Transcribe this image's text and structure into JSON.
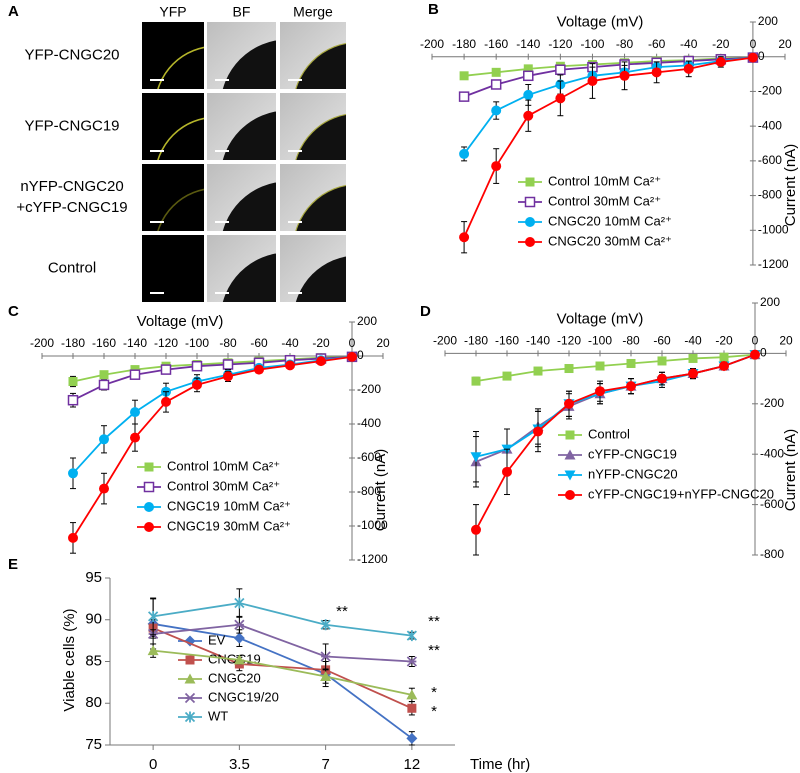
{
  "panel_a": {
    "label": "A",
    "columns": [
      "YFP",
      "BF",
      "Merge"
    ],
    "rows": [
      [
        "YFP-CNGC20"
      ],
      [
        "YFP-CNGC19"
      ],
      [
        "nYFP-CNGC20",
        "+cYFP-CNGC19"
      ],
      [
        "Control"
      ]
    ]
  },
  "chart_data": [
    {
      "type": "line",
      "label": "B",
      "x_label": "Voltage (mV)",
      "y_label": "Current (nA)",
      "x": [
        -180,
        -160,
        -140,
        -120,
        -100,
        -80,
        -60,
        -40,
        -20,
        0
      ],
      "xlim": [
        -200,
        20
      ],
      "xticks": [
        -200,
        -180,
        -160,
        -140,
        -120,
        -100,
        -80,
        -60,
        -40,
        -20,
        0,
        20
      ],
      "ylim": [
        -1200,
        200
      ],
      "yticks": [
        200,
        0,
        -200,
        -400,
        -600,
        -800,
        -1000,
        -1200
      ],
      "series": [
        {
          "name": "Control 10mM Ca²⁺",
          "color": "#92d050",
          "marker": "square",
          "values": [
            -110,
            -90,
            -70,
            -55,
            -45,
            -35,
            -25,
            -20,
            -10,
            -5
          ],
          "errors": [
            15,
            10,
            8,
            6,
            5,
            5,
            4,
            3,
            3,
            2
          ]
        },
        {
          "name": "Control 30mM Ca²⁺",
          "color": "#7030a0",
          "marker": "open-square",
          "values": [
            -230,
            -160,
            -110,
            -75,
            -60,
            -45,
            -35,
            -25,
            -15,
            -5
          ],
          "errors": [
            20,
            15,
            12,
            10,
            8,
            6,
            5,
            4,
            3,
            2
          ]
        },
        {
          "name": "CNGC20 10mM Ca²⁺",
          "color": "#00b0f0",
          "marker": "circle",
          "values": [
            -560,
            -310,
            -220,
            -160,
            -110,
            -90,
            -60,
            -50,
            -25,
            -5
          ],
          "errors": [
            40,
            50,
            60,
            55,
            50,
            40,
            30,
            25,
            15,
            5
          ]
        },
        {
          "name": "CNGC20 30mM Ca²⁺",
          "color": "#ff0000",
          "marker": "circle",
          "values": [
            -1040,
            -630,
            -340,
            -240,
            -140,
            -110,
            -90,
            -70,
            -30,
            -5
          ],
          "errors": [
            90,
            100,
            90,
            100,
            100,
            80,
            60,
            45,
            30,
            5
          ]
        }
      ]
    },
    {
      "type": "line",
      "label": "C",
      "x_label": "Voltage (mV)",
      "y_label": "Current (nA)",
      "x": [
        -180,
        -160,
        -140,
        -120,
        -100,
        -80,
        -60,
        -40,
        -20,
        0
      ],
      "xlim": [
        -200,
        20
      ],
      "xticks": [
        -200,
        -180,
        -160,
        -140,
        -120,
        -100,
        -80,
        -60,
        -40,
        -20,
        0,
        20
      ],
      "ylim": [
        -1200,
        200
      ],
      "yticks": [
        200,
        0,
        -200,
        -400,
        -600,
        -800,
        -1000,
        -1200
      ],
      "series": [
        {
          "name": "Control 10mM Ca²⁺",
          "color": "#92d050",
          "marker": "square",
          "values": [
            -150,
            -110,
            -80,
            -60,
            -50,
            -40,
            -30,
            -20,
            -10,
            -5
          ],
          "errors": [
            30,
            20,
            15,
            10,
            8,
            6,
            5,
            4,
            3,
            2
          ]
        },
        {
          "name": "Control 30mM Ca²⁺",
          "color": "#7030a0",
          "marker": "open-square",
          "values": [
            -260,
            -170,
            -110,
            -80,
            -60,
            -50,
            -40,
            -25,
            -15,
            -5
          ],
          "errors": [
            40,
            30,
            25,
            15,
            10,
            8,
            6,
            4,
            3,
            2
          ]
        },
        {
          "name": "CNGC19 10mM Ca²⁺",
          "color": "#00b0f0",
          "marker": "circle",
          "values": [
            -690,
            -490,
            -330,
            -210,
            -150,
            -110,
            -70,
            -50,
            -25,
            -5
          ],
          "errors": [
            90,
            80,
            70,
            50,
            40,
            30,
            20,
            15,
            10,
            5
          ]
        },
        {
          "name": "CNGC19 30mM Ca²⁺",
          "color": "#ff0000",
          "marker": "circle",
          "values": [
            -1070,
            -780,
            -480,
            -270,
            -170,
            -120,
            -80,
            -55,
            -30,
            -5
          ],
          "errors": [
            90,
            90,
            80,
            60,
            40,
            30,
            20,
            15,
            10,
            5
          ]
        }
      ]
    },
    {
      "type": "line",
      "label": "D",
      "x_label": "Voltage (mV)",
      "y_label": "Current (nA)",
      "x": [
        -180,
        -160,
        -140,
        -120,
        -100,
        -80,
        -60,
        -40,
        -20,
        0
      ],
      "xlim": [
        -200,
        20
      ],
      "xticks": [
        -200,
        -180,
        -160,
        -140,
        -120,
        -100,
        -80,
        -60,
        -40,
        -20,
        0,
        20
      ],
      "ylim": [
        -800,
        200
      ],
      "yticks": [
        200,
        0,
        -200,
        -400,
        -600,
        -800
      ],
      "series": [
        {
          "name": "Control",
          "color": "#92d050",
          "marker": "square",
          "values": [
            -110,
            -90,
            -70,
            -60,
            -50,
            -40,
            -30,
            -20,
            -15,
            -5
          ],
          "errors": [
            15,
            12,
            10,
            8,
            6,
            5,
            4,
            3,
            3,
            2
          ]
        },
        {
          "name": "cYFP-CNGC19",
          "color": "#8064a2",
          "marker": "triangle",
          "values": [
            -430,
            -380,
            -290,
            -210,
            -160,
            -130,
            -100,
            -80,
            -50,
            -5
          ],
          "errors": [
            100,
            80,
            70,
            50,
            40,
            30,
            25,
            20,
            15,
            5
          ]
        },
        {
          "name": "nYFP-CNGC20",
          "color": "#00b0f0",
          "marker": "down-triangle",
          "values": [
            -410,
            -380,
            -300,
            -200,
            -160,
            -130,
            -110,
            -80,
            -50,
            -5
          ],
          "errors": [
            100,
            80,
            70,
            50,
            40,
            30,
            25,
            20,
            15,
            5
          ]
        },
        {
          "name": "cYFP-CNGC19+nYFP-CNGC20",
          "color": "#ff0000",
          "marker": "circle",
          "values": [
            -700,
            -470,
            -310,
            -200,
            -150,
            -130,
            -100,
            -80,
            -50,
            -5
          ],
          "errors": [
            100,
            90,
            80,
            50,
            40,
            30,
            25,
            20,
            15,
            5
          ]
        }
      ]
    },
    {
      "type": "line",
      "label": "E",
      "x_label": "Time (hr)",
      "y_label": "Viable cells (%)",
      "categories": [
        "0",
        "3.5",
        "7",
        "12"
      ],
      "ylim": [
        75,
        95
      ],
      "yticks": [
        75,
        80,
        85,
        90,
        95
      ],
      "series": [
        {
          "name": "EV",
          "color": "#4472c4",
          "marker": "diamond",
          "values": [
            89.5,
            87.8,
            83.5,
            75.8
          ],
          "errors": [
            3,
            1,
            1.5,
            0.8
          ]
        },
        {
          "name": "CNGC19",
          "color": "#c0504d",
          "marker": "square",
          "values": [
            89,
            84.7,
            84,
            79.4
          ],
          "errors": [
            1,
            0.8,
            1,
            0.8
          ]
        },
        {
          "name": "CNGC20",
          "color": "#9bbb59",
          "marker": "triangle",
          "values": [
            86.3,
            85.2,
            83.2,
            81
          ],
          "errors": [
            0.8,
            0.5,
            0.8,
            0.8
          ]
        },
        {
          "name": "CNGC19/20",
          "color": "#8064a2",
          "marker": "x",
          "values": [
            88.3,
            89.4,
            85.6,
            85
          ],
          "errors": [
            0.5,
            1,
            1.5,
            0.6
          ]
        },
        {
          "name": "WT",
          "color": "#4bacc6",
          "marker": "star",
          "values": [
            90.4,
            92,
            89.4,
            88.1
          ],
          "errors": [
            2.2,
            1.7,
            0.5,
            0.4
          ]
        }
      ],
      "annotations": [
        {
          "text": "**"
        },
        {
          "text": "**"
        },
        {
          "text": "**"
        },
        {
          "text": "*"
        },
        {
          "text": "*"
        }
      ]
    }
  ]
}
